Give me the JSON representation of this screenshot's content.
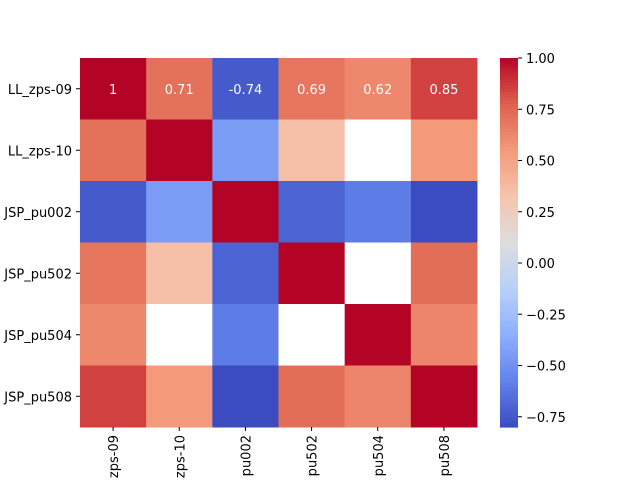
{
  "chart_data": {
    "type": "heatmap",
    "title": "",
    "xlabel": "",
    "ylabel": "",
    "row_labels": [
      "LL_zps-09",
      "LL_zps-10",
      "JSP_pu002",
      "JSP_pu502",
      "JSP_pu504",
      "JSP_pu508"
    ],
    "col_labels": [
      "zps-09",
      "zps-10",
      "pu002",
      "pu502",
      "pu504",
      "pu508"
    ],
    "values": [
      [
        1.0,
        0.71,
        -0.74,
        0.69,
        0.62,
        0.85
      ],
      [
        0.71,
        1.0,
        -0.45,
        0.35,
        null,
        0.55
      ],
      [
        -0.74,
        -0.45,
        1.0,
        -0.7,
        -0.6,
        -0.8
      ],
      [
        0.69,
        0.35,
        -0.7,
        1.0,
        null,
        0.72
      ],
      [
        0.62,
        null,
        -0.6,
        null,
        1.0,
        0.63
      ],
      [
        0.85,
        0.55,
        -0.8,
        0.72,
        0.63,
        1.0
      ]
    ],
    "annotated_row": 0,
    "annotation_labels": [
      "1",
      "0.71",
      "-0.74",
      "0.69",
      "0.62",
      "0.85"
    ],
    "colormap": "coolwarm",
    "vmin": -0.8,
    "vmax": 1.0,
    "colorbar": {
      "ticks": [
        1.0,
        0.75,
        0.5,
        0.25,
        0.0,
        -0.25,
        -0.5,
        -0.75
      ],
      "tick_labels": [
        "1.00",
        "0.75",
        "0.50",
        "0.25",
        "0.00",
        "−0.25",
        "−0.50",
        "−0.75"
      ],
      "placement": "right"
    }
  }
}
